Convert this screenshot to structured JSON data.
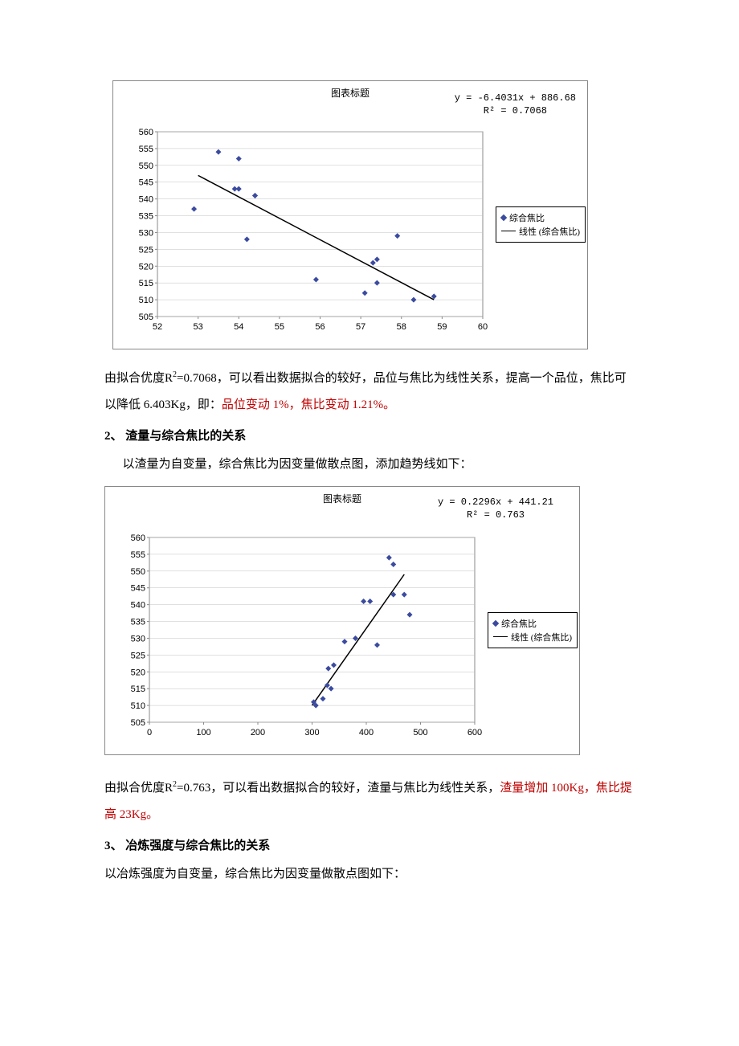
{
  "chart1": {
    "type": "scatter",
    "title": "图表标题",
    "equation_line1": "y = -6.4031x + 886.68",
    "equation_line2": "R² = 0.7068",
    "legend_scatter": "综合焦比",
    "legend_trend": "线性 (综合焦比)",
    "xlim": [
      52,
      60
    ],
    "xtick_step": 1,
    "ylim": [
      505,
      560
    ],
    "ytick_step": 5,
    "points": [
      [
        52.9,
        537
      ],
      [
        53.5,
        554
      ],
      [
        54.0,
        552
      ],
      [
        53.9,
        543
      ],
      [
        54.0,
        543
      ],
      [
        54.2,
        528
      ],
      [
        54.4,
        541
      ],
      [
        54.4,
        541
      ],
      [
        55.9,
        516
      ],
      [
        57.1,
        512
      ],
      [
        57.3,
        521
      ],
      [
        57.4,
        515
      ],
      [
        57.4,
        522
      ],
      [
        57.9,
        529
      ],
      [
        58.3,
        510
      ],
      [
        58.8,
        511
      ]
    ],
    "trend_start": [
      53,
      547
    ],
    "trend_end": [
      58.8,
      510
    ],
    "marker_color": "#3b4ba0",
    "grid_color": "#c0c0c0",
    "bg": "#ffffff",
    "axis_fontsize": 11
  },
  "para1_a": "由拟合优度",
  "para1_b": "=0.7068，可以看出数据拟合的较好，品位与焦比为线性关系，提高一个品位，焦比可以降低 6.403Kg，即：",
  "para1_red": "品位变动 1%，焦比变动 1.21%。",
  "r2_label": "R",
  "r2_sup": "2",
  "heading2": "2、 渣量与综合焦比的关系",
  "para2": "以渣量为自变量，综合焦比为因变量做散点图，添加趋势线如下：",
  "chart2": {
    "type": "scatter",
    "title": "图表标题",
    "equation_line1": "y = 0.2296x + 441.21",
    "equation_line2": "R² = 0.763",
    "legend_scatter": "综合焦比",
    "legend_trend": "线性 (综合焦比)",
    "xlim": [
      0,
      600
    ],
    "xtick_step": 100,
    "ylim": [
      505,
      560
    ],
    "ytick_step": 5,
    "points": [
      [
        303,
        511
      ],
      [
        307,
        510
      ],
      [
        320,
        512
      ],
      [
        328,
        516
      ],
      [
        330,
        521
      ],
      [
        335,
        515
      ],
      [
        340,
        522
      ],
      [
        360,
        529
      ],
      [
        380,
        530
      ],
      [
        395,
        541
      ],
      [
        407,
        541
      ],
      [
        420,
        528
      ],
      [
        442,
        554
      ],
      [
        450,
        552
      ],
      [
        450,
        543
      ],
      [
        470,
        543
      ],
      [
        480,
        537
      ]
    ],
    "trend_start": [
      300,
      510
    ],
    "trend_end": [
      470,
      549
    ],
    "marker_color": "#3b4ba0",
    "grid_color": "#c0c0c0",
    "bg": "#ffffff",
    "axis_fontsize": 11
  },
  "para3_a": "由拟合优度",
  "para3_b": "=0.763，可以看出数据拟合的较好，渣量与焦比为线性关系，",
  "para3_red": "渣量增加 100Kg，焦比提高 23Kg。",
  "heading3": "3、 冶炼强度与综合焦比的关系",
  "para4": "以冶炼强度为自变量，综合焦比为因变量做散点图如下："
}
